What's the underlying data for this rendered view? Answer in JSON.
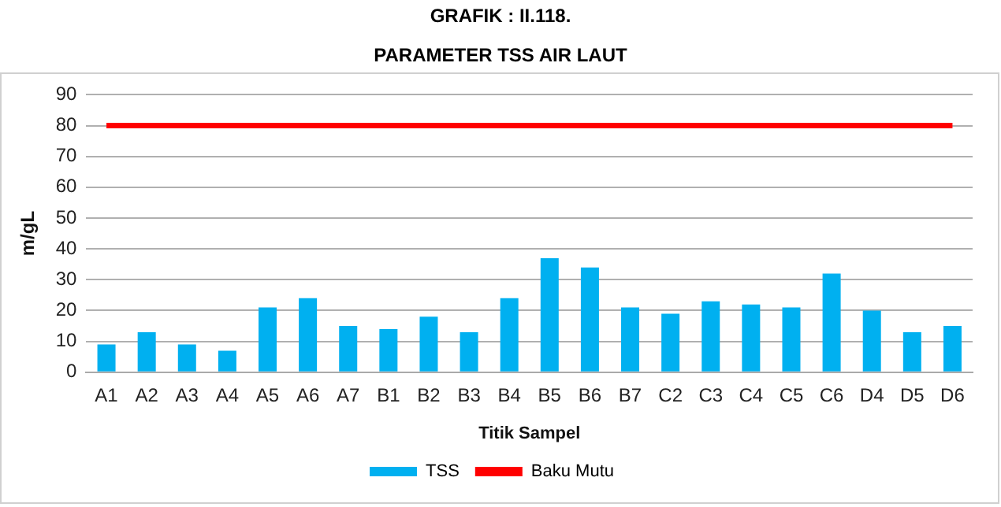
{
  "chart_data": {
    "type": "bar",
    "title": "GRAFIK : II.118.",
    "subtitle": "PARAMETER TSS AIR LAUT",
    "xlabel": "Titik Sampel",
    "ylabel": "m/gL",
    "categories": [
      "A1",
      "A2",
      "A3",
      "A4",
      "A5",
      "A6",
      "A7",
      "B1",
      "B2",
      "B3",
      "B4",
      "B5",
      "B6",
      "B7",
      "C2",
      "C3",
      "C4",
      "C5",
      "C6",
      "D4",
      "D5",
      "D6"
    ],
    "series": [
      {
        "name": "TSS",
        "color": "#00b0f0",
        "values": [
          9,
          13,
          9,
          7,
          21,
          24,
          15,
          14,
          18,
          13,
          24,
          37,
          34,
          21,
          19,
          23,
          22,
          21,
          32,
          20,
          13,
          15
        ]
      },
      {
        "name": "Baku Mutu",
        "type": "line",
        "color": "#ff0000",
        "values": [
          80,
          80,
          80,
          80,
          80,
          80,
          80,
          80,
          80,
          80,
          80,
          80,
          80,
          80,
          80,
          80,
          80,
          80,
          80,
          80,
          80,
          80
        ]
      }
    ],
    "ylim": [
      0,
      90
    ],
    "yticks": [
      0,
      10,
      20,
      30,
      40,
      50,
      60,
      70,
      80,
      90
    ],
    "grid": "y",
    "legend": "bottom",
    "marker": "none",
    "line_style": "solid"
  }
}
